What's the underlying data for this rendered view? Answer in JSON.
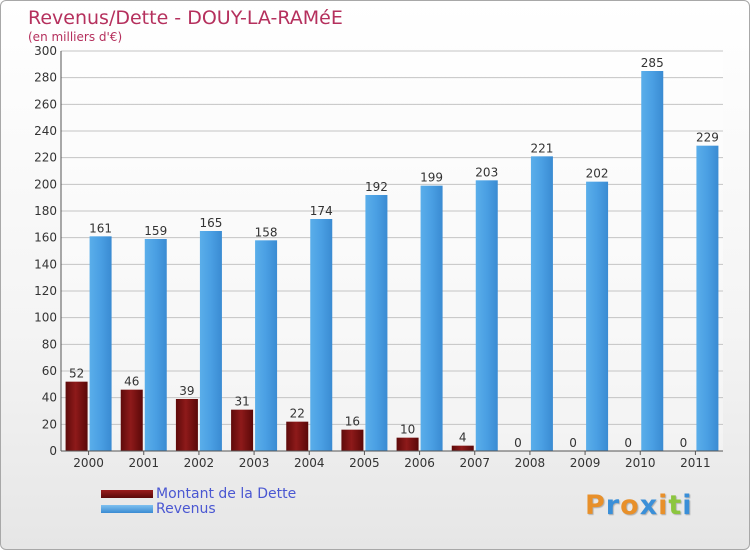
{
  "header": {
    "title": "Revenus/Dette - DOUY-LA-RAMéE",
    "subtitle": "(en milliers d'€)"
  },
  "legend": {
    "items": [
      {
        "label": "Montant de la Dette",
        "color": "#7a1010"
      },
      {
        "label": "Revenus",
        "color": "#4fa3e6"
      }
    ]
  },
  "logo": {
    "letters": [
      "P",
      "r",
      "o",
      "x",
      "i",
      "t",
      "i"
    ],
    "colors": [
      "#e8902a",
      "#3a8fd8",
      "#e8902a",
      "#3a8fd8",
      "#e8902a",
      "#8cc63f",
      "#3a8fd8"
    ]
  },
  "chart_data": {
    "type": "bar",
    "title": "Revenus/Dette - DOUY-LA-RAMéE",
    "ylabel": "(en milliers d'€)",
    "xlabel": "",
    "categories": [
      "2000",
      "2001",
      "2002",
      "2003",
      "2004",
      "2005",
      "2006",
      "2007",
      "2008",
      "2009",
      "2010",
      "2011"
    ],
    "ylim": [
      0,
      300
    ],
    "yticks": [
      0,
      20,
      40,
      60,
      80,
      100,
      120,
      140,
      160,
      180,
      200,
      220,
      240,
      260,
      280,
      300
    ],
    "grid": true,
    "series": [
      {
        "name": "Montant de la Dette",
        "color": "#7a1010",
        "values": [
          52,
          46,
          39,
          31,
          22,
          16,
          10,
          4,
          0,
          0,
          0,
          0
        ]
      },
      {
        "name": "Revenus",
        "color": "#4fa3e6",
        "values": [
          161,
          159,
          165,
          158,
          174,
          192,
          199,
          203,
          221,
          202,
          285,
          229
        ]
      }
    ]
  }
}
